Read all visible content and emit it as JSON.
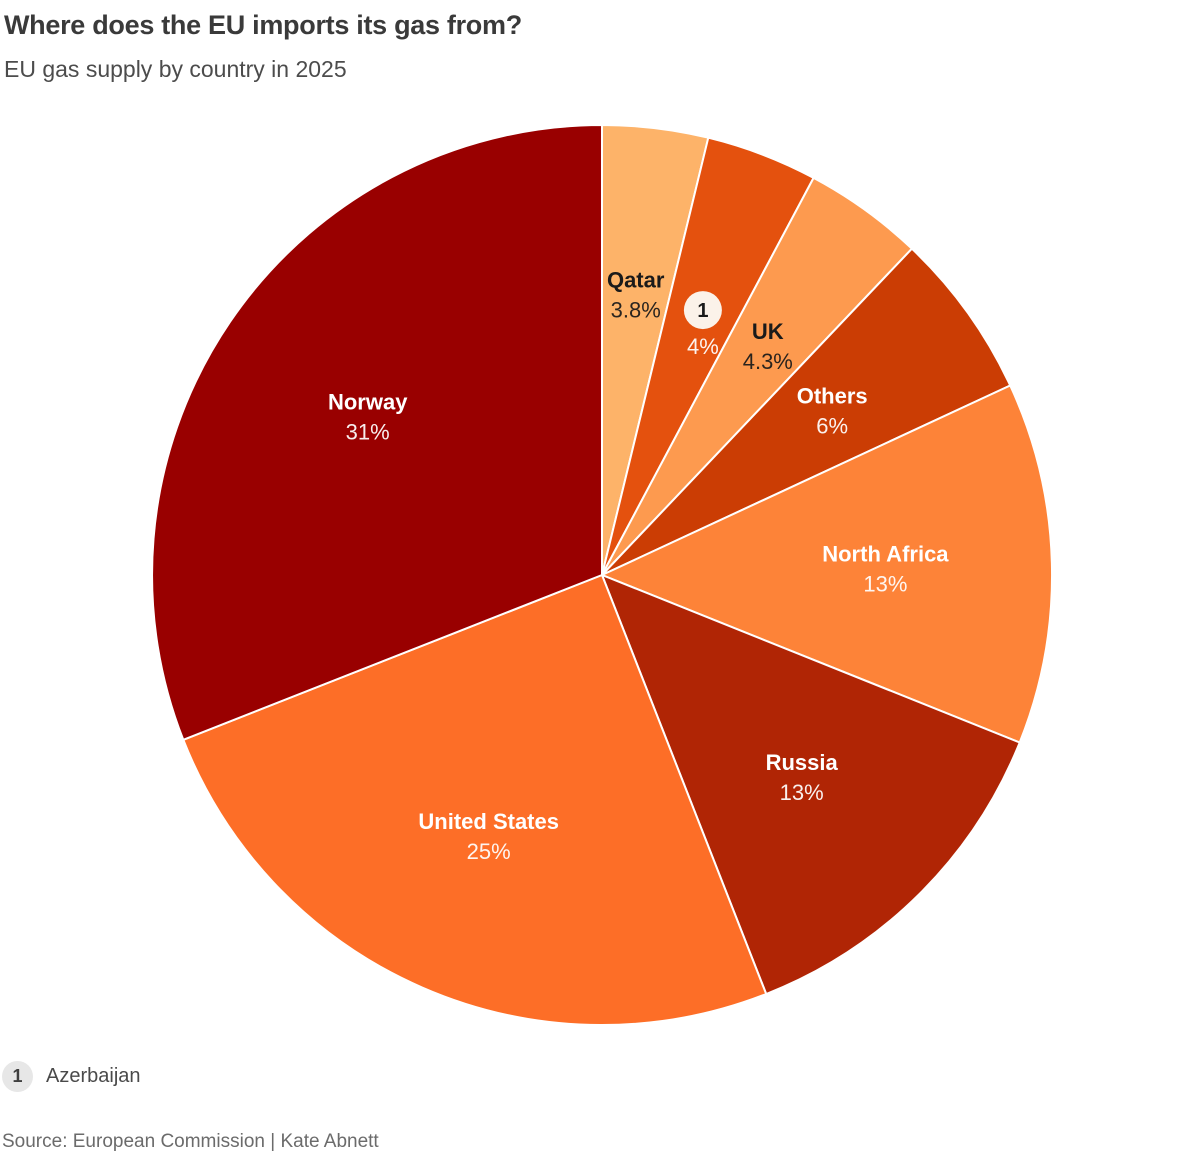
{
  "header": {
    "title": "Where does the EU imports its gas from?",
    "subtitle": "EU gas supply by country in 2025"
  },
  "chart_data": {
    "type": "pie",
    "title": "Where does the EU imports its gas from?",
    "subtitle": "EU gas supply by country in 2025",
    "unit": "%",
    "start_angle_deg": 0,
    "direction": "clockwise",
    "labels_position": "inside",
    "slices": [
      {
        "name": "Qatar",
        "value": 3.8,
        "value_label": "3.8%",
        "color": "#FDB369",
        "text_color": "#1a1a1a"
      },
      {
        "name": "Azerbaijan",
        "value": 4,
        "value_label": "4%",
        "color": "#E4510E",
        "text_color": "#ffffff",
        "footnote_marker": "1",
        "show_name": false
      },
      {
        "name": "UK",
        "value": 4.3,
        "value_label": "4.3%",
        "color": "#FD9A4F",
        "text_color": "#1a1a1a"
      },
      {
        "name": "Others",
        "value": 6,
        "value_label": "6%",
        "color": "#CB3D04",
        "text_color": "#ffffff"
      },
      {
        "name": "North Africa",
        "value": 13,
        "value_label": "13%",
        "color": "#FD8338",
        "text_color": "#ffffff"
      },
      {
        "name": "Russia",
        "value": 13,
        "value_label": "13%",
        "color": "#B02505",
        "text_color": "#ffffff"
      },
      {
        "name": "United States",
        "value": 25,
        "value_label": "25%",
        "color": "#FD6E27",
        "text_color": "#ffffff"
      },
      {
        "name": "Norway",
        "value": 31,
        "value_label": "31%",
        "color": "#990000",
        "text_color": "#ffffff"
      }
    ],
    "badge": {
      "background": "#FBF2E9",
      "text_color": "#1a1a1a"
    },
    "separator_color": "#ffffff"
  },
  "footnotes": [
    {
      "marker": "1",
      "label": "Azerbaijan"
    }
  ],
  "source": "Source: European Commission | Kate Abnett"
}
